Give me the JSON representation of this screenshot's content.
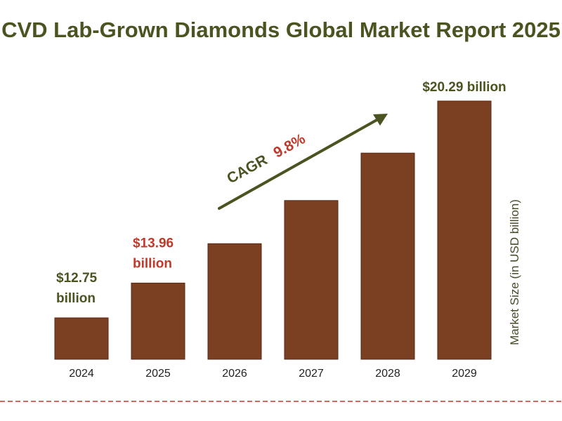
{
  "colors": {
    "title": "#4b5320",
    "bar": "#7b3f22",
    "label_default": "#4b5320",
    "label_highlight": "#c0392b",
    "arrow": "#4b5320",
    "cagr_value": "#c0392b",
    "dashed_line": "#c0392b"
  },
  "chart_data": {
    "type": "bar",
    "title": "CVD Lab-Grown Diamonds Global Market Report 2025",
    "categories": [
      "2024",
      "2025",
      "2026",
      "2027",
      "2028",
      "2029"
    ],
    "values": [
      12.75,
      13.96,
      15.33,
      16.83,
      18.48,
      20.29
    ],
    "ylabel": "Market Size (in USD billion)",
    "xlabel": "",
    "grid": false,
    "bar_labels": [
      {
        "index": 0,
        "line1": "$12.75",
        "line2": "billion",
        "highlight": false
      },
      {
        "index": 1,
        "line1": "$13.96",
        "line2": "billion",
        "highlight": true
      },
      {
        "index": 5,
        "line1": "$20.29 billion",
        "line2": "",
        "highlight": false
      }
    ],
    "annotation": {
      "prefix": "CAGR",
      "value": "9.8%"
    }
  }
}
